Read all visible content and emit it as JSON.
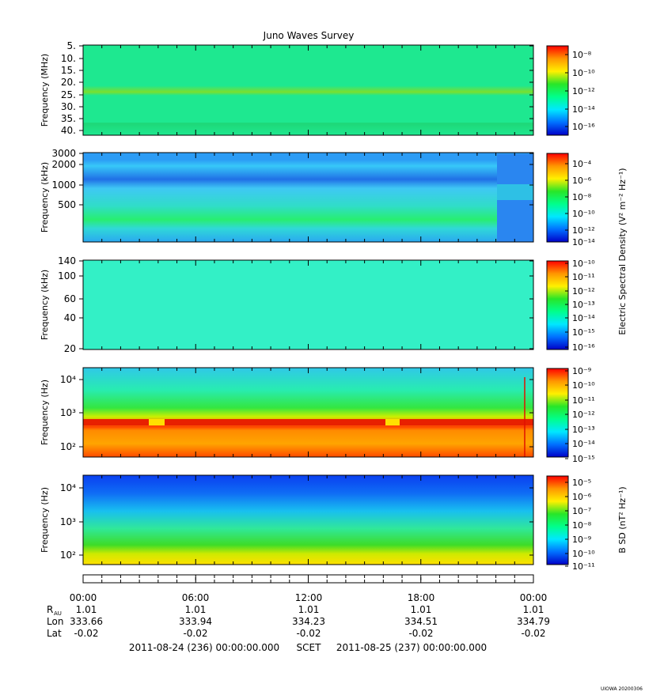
{
  "title": "Juno Waves Survey",
  "shared_colorbar_label": "Electric Spectral Density (V² m⁻² Hz⁻¹)",
  "colormap": [
    "#0000c8",
    "#0070ff",
    "#00e8ff",
    "#00ff8c",
    "#28e628",
    "#fff000",
    "#ff9600",
    "#ff0000"
  ],
  "chart_data": [
    {
      "type": "heatmap",
      "ylabel": "Frequency (MHz)",
      "y_scale": "linear",
      "y_ticks": [
        "5.",
        "10.",
        "15.",
        "20.",
        "25.",
        "30.",
        "35.",
        "40."
      ],
      "colorbar_ticks": [
        "10⁻⁸",
        "10⁻¹⁰",
        "10⁻¹²",
        "10⁻¹⁴",
        "10⁻¹⁶"
      ],
      "colorbar_units": ""
    },
    {
      "type": "heatmap",
      "ylabel": "Frequency (kHz)",
      "y_scale": "log",
      "y_ticks": [
        "3000",
        "2000",
        "1000",
        "500"
      ],
      "colorbar_ticks": [
        "10⁻⁴",
        "10⁻⁶",
        "10⁻⁸",
        "10⁻¹⁰",
        "10⁻¹²",
        "10⁻¹⁴"
      ],
      "colorbar_units": ""
    },
    {
      "type": "heatmap",
      "ylabel": "Frequency (kHz)",
      "y_scale": "log",
      "y_ticks": [
        "140",
        "100",
        "60",
        "40",
        "20"
      ],
      "colorbar_ticks": [
        "10⁻¹⁰",
        "10⁻¹¹",
        "10⁻¹²",
        "10⁻¹³",
        "10⁻¹⁴",
        "10⁻¹⁵",
        "10⁻¹⁶"
      ],
      "colorbar_units": ""
    },
    {
      "type": "heatmap",
      "ylabel": "Frequency (Hz)",
      "y_scale": "log",
      "y_ticks": [
        "10⁴",
        "10³",
        "10²"
      ],
      "colorbar_ticks": [
        "10⁻⁹",
        "10⁻¹⁰",
        "10⁻¹¹",
        "10⁻¹²",
        "10⁻¹³",
        "10⁻¹⁴",
        "10⁻¹⁵"
      ],
      "colorbar_units": ""
    },
    {
      "type": "heatmap",
      "ylabel": "Frequency (Hz)",
      "y_scale": "log",
      "y_ticks": [
        "10⁴",
        "10³",
        "10²"
      ],
      "colorbar_ticks": [
        "10⁻⁵",
        "10⁻⁶",
        "10⁻⁷",
        "10⁻⁸",
        "10⁻⁹",
        "10⁻¹⁰",
        "10⁻¹¹"
      ],
      "colorbar_units": "B SD (nT² Hz⁻¹)"
    }
  ],
  "ephemeris": {
    "times": [
      "00:00",
      "06:00",
      "12:00",
      "18:00",
      "00:00"
    ],
    "rows": [
      {
        "label": "R",
        "sub": "AU",
        "values": [
          "1.01",
          "1.01",
          "1.01",
          "1.01",
          "1.01"
        ]
      },
      {
        "label": "Lon",
        "sub": "",
        "values": [
          "333.66",
          "333.94",
          "334.23",
          "334.51",
          "334.79"
        ]
      },
      {
        "label": "Lat",
        "sub": "",
        "values": [
          "-0.02",
          "-0.02",
          "-0.02",
          "-0.02",
          "-0.02"
        ]
      }
    ]
  },
  "footer": {
    "start": "2011-08-24 (236) 00:00:00.000",
    "scet": "SCET",
    "end": "2011-08-25 (237) 00:00:00.000"
  },
  "stamp": "UIOWA 20200306"
}
